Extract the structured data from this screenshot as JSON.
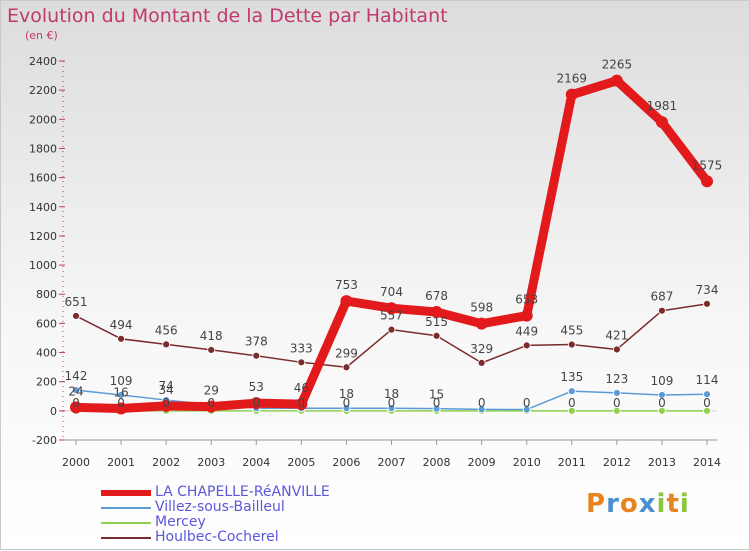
{
  "header": {
    "title": "Evolution du Montant de la Dette par Habitant",
    "unit": "(en €)"
  },
  "brand": {
    "name": "Proxiti"
  },
  "colors": {
    "title": "#c0396e",
    "legend_text": "#5b57d9"
  },
  "chart_data": {
    "type": "line",
    "title": "Evolution du Montant de la Dette par Habitant",
    "subtitle": "(en €)",
    "x": [
      2000,
      2001,
      2002,
      2003,
      2004,
      2005,
      2006,
      2007,
      2008,
      2009,
      2010,
      2011,
      2012,
      2013,
      2014
    ],
    "ylim": [
      -200,
      2400
    ],
    "yticks": [
      -200,
      0,
      200,
      400,
      600,
      800,
      1000,
      1200,
      1400,
      1600,
      1800,
      2000,
      2200,
      2400
    ],
    "grid": false,
    "legend": "bottom-left",
    "series": [
      {
        "name": "LA CHAPELLE-RéANVILLE",
        "color": "#e31a1c",
        "emphasis": true,
        "values": [
          24,
          16,
          34,
          29,
          53,
          46,
          753,
          704,
          678,
          598,
          653,
          2169,
          2265,
          1981,
          1575
        ],
        "labels": [
          "24",
          "16",
          "34",
          "29",
          "53",
          "46",
          "753",
          "704",
          "678",
          "598",
          "653",
          "2169",
          "2265",
          "1981",
          "1575"
        ]
      },
      {
        "name": "Villez-sous-Bailleul",
        "color": "#5b9bd5",
        "values": [
          142,
          109,
          74,
          43,
          18,
          18,
          18,
          18,
          15,
          10,
          9,
          135,
          123,
          109,
          114
        ],
        "labels": [
          "142",
          "109",
          "74",
          "",
          "",
          "",
          "18",
          "18",
          "15",
          "",
          "",
          "135",
          "123",
          "109",
          "114"
        ]
      },
      {
        "name": "Mercey",
        "color": "#8fd14f",
        "values": [
          0,
          0,
          0,
          0,
          0,
          0,
          0,
          0,
          0,
          0,
          0,
          0,
          0,
          0,
          0
        ],
        "labels": [
          "0",
          "0",
          "0",
          "0",
          "0",
          "0",
          "0",
          "0",
          "0",
          "0",
          "0",
          "0",
          "0",
          "0",
          "0"
        ]
      },
      {
        "name": "Houlbec-Cocherel",
        "color": "#7b2b2b",
        "values": [
          651,
          494,
          456,
          418,
          378,
          333,
          299,
          557,
          515,
          329,
          449,
          455,
          421,
          687,
          734
        ],
        "labels": [
          "651",
          "494",
          "456",
          "418",
          "378",
          "333",
          "299",
          "557",
          "515",
          "329",
          "449",
          "455",
          "421",
          "687",
          "734"
        ]
      }
    ]
  }
}
